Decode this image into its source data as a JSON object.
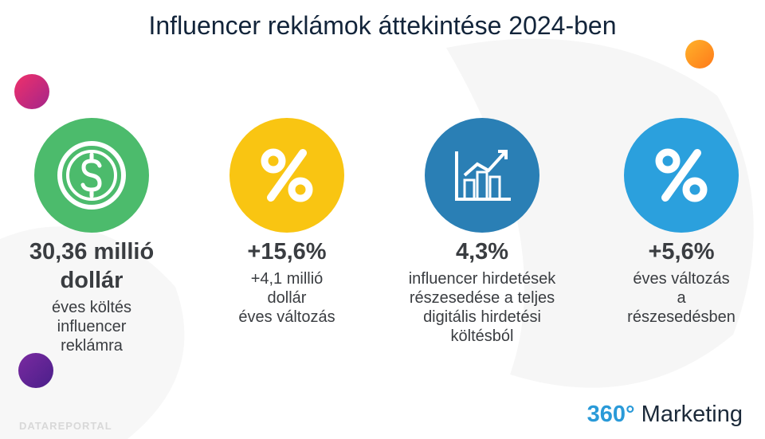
{
  "header": {
    "title": "Influencer reklámok áttekintése 2024-ben"
  },
  "cards": [
    {
      "value": "30,36 millió dollár",
      "description": [
        "éves költés",
        "influencer",
        "reklámra"
      ]
    },
    {
      "value": "+15,6%",
      "description": [
        "+4,1 millió",
        "dollár",
        "éves változás"
      ]
    },
    {
      "value": "4,3%",
      "description": [
        "influencer hirdetések",
        "részesedése a teljes",
        "digitális hirdetési",
        "költésból"
      ]
    },
    {
      "value": "+5,6%",
      "description": [
        "éves változás",
        "a",
        "részesedésben"
      ]
    }
  ],
  "footer": {
    "source": "DATAREPORTAL",
    "brand_number": "360°",
    "brand_name": "Marketing"
  }
}
